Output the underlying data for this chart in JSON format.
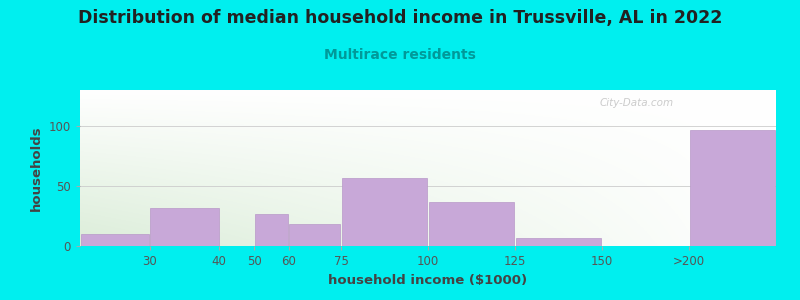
{
  "title": "Distribution of median household income in Trussville, AL in 2022",
  "subtitle": "Multirace residents",
  "xlabel": "household income ($1000)",
  "ylabel": "households",
  "background_color": "#00EFEF",
  "bar_color": "#c8a8d8",
  "bar_edge_color": "#b898c8",
  "bar_lefts": [
    0,
    10,
    20,
    25,
    30,
    37.5,
    50,
    62.5,
    75,
    87.5
  ],
  "bar_widths": [
    10,
    10,
    5,
    5,
    7.5,
    12.5,
    12.5,
    12.5,
    12.5,
    12.5
  ],
  "bar_heights": [
    10,
    32,
    0,
    27,
    18,
    57,
    37,
    7,
    0,
    97
  ],
  "xlim": [
    0,
    100
  ],
  "ylim": [
    0,
    130
  ],
  "yticks": [
    0,
    50,
    100
  ],
  "tick_positions": [
    10,
    20,
    25,
    30,
    37.5,
    50,
    62.5,
    75,
    87.5
  ],
  "tick_labels": [
    "30",
    "40",
    "50",
    "60",
    "75",
    "100",
    "125",
    "150",
    ">200"
  ],
  "watermark": "City-Data.com",
  "title_fontsize": 12.5,
  "subtitle_fontsize": 10,
  "axis_label_fontsize": 9.5,
  "tick_fontsize": 8.5
}
